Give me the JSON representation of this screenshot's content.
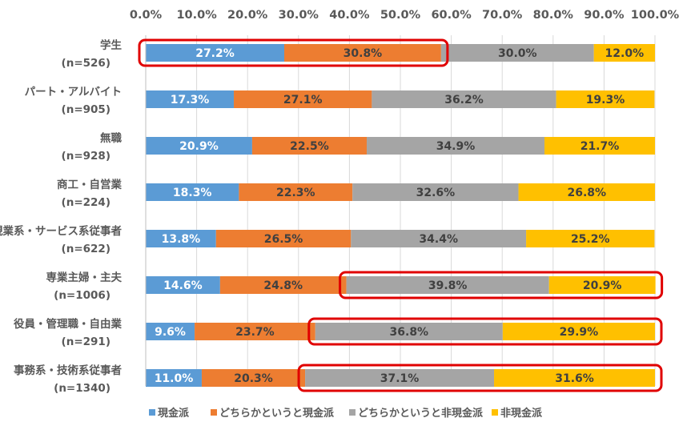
{
  "chart_data": {
    "type": "bar",
    "orientation": "horizontal",
    "stacked": true,
    "percent": true,
    "xlim": [
      0,
      100
    ],
    "x_ticks": [
      "0.0%",
      "10.0%",
      "20.0%",
      "30.0%",
      "40.0%",
      "50.0%",
      "60.0%",
      "70.0%",
      "80.0%",
      "90.0%",
      "100.0%"
    ],
    "x_tick_values": [
      0,
      10,
      20,
      30,
      40,
      50,
      60,
      70,
      80,
      90,
      100
    ],
    "x_axis_position": "top",
    "legend_position": "bottom",
    "grid": "vertical",
    "categories": [
      {
        "name": "学生",
        "n": "(n=526)"
      },
      {
        "name": "パート・アルバイト",
        "n": "(n=905)"
      },
      {
        "name": "無職",
        "n": "(n=928)"
      },
      {
        "name": "商工・自営業",
        "n": "(n=224)"
      },
      {
        "name": "現業系・サービス系従事者",
        "n": "(n=622)"
      },
      {
        "name": "専業主婦・主夫",
        "n": "(n=1006)"
      },
      {
        "name": "役員・管理職・自由業",
        "n": "(n=291)"
      },
      {
        "name": "事務系・技術系従事者",
        "n": "(n=1340)"
      }
    ],
    "series": [
      {
        "name": "現金派",
        "color": "#5B9BD5",
        "values": [
          27.2,
          17.3,
          20.9,
          18.3,
          13.8,
          14.6,
          9.6,
          11.0
        ],
        "labels": [
          "27.2%",
          "17.3%",
          "20.9%",
          "18.3%",
          "13.8%",
          "14.6%",
          "9.6%",
          "11.0%"
        ]
      },
      {
        "name": "どちらかというと現金派",
        "color": "#ED7D31",
        "values": [
          30.8,
          27.1,
          22.5,
          22.3,
          26.5,
          24.8,
          23.7,
          20.3
        ],
        "labels": [
          "30.8%",
          "27.1%",
          "22.5%",
          "22.3%",
          "26.5%",
          "24.8%",
          "23.7%",
          "20.3%"
        ]
      },
      {
        "name": "どちらかというと非現金派",
        "color": "#A5A5A5",
        "values": [
          30.0,
          36.2,
          34.9,
          32.6,
          34.4,
          39.8,
          36.8,
          37.1
        ],
        "labels": [
          "30.0%",
          "36.2%",
          "34.9%",
          "32.6%",
          "34.4%",
          "39.8%",
          "36.8%",
          "37.1%"
        ]
      },
      {
        "name": "非現金派",
        "color": "#FFC000",
        "values": [
          12.0,
          19.3,
          21.7,
          26.8,
          25.2,
          20.9,
          29.9,
          31.6
        ],
        "labels": [
          "12.0%",
          "19.3%",
          "21.7%",
          "26.8%",
          "25.2%",
          "20.9%",
          "29.9%",
          "31.6%"
        ]
      }
    ],
    "label_colors": {
      "light": "#FFFFFF",
      "dark": "#404040"
    },
    "highlights": [
      {
        "category_index": 0,
        "from_series": 0,
        "to_series": 1,
        "color": "#E00000"
      },
      {
        "category_index": 5,
        "from_series": 2,
        "to_series": 3,
        "color": "#E00000"
      },
      {
        "category_index": 6,
        "from_series": 2,
        "to_series": 3,
        "color": "#E00000"
      },
      {
        "category_index": 7,
        "from_series": 2,
        "to_series": 3,
        "color": "#E00000"
      }
    ]
  }
}
